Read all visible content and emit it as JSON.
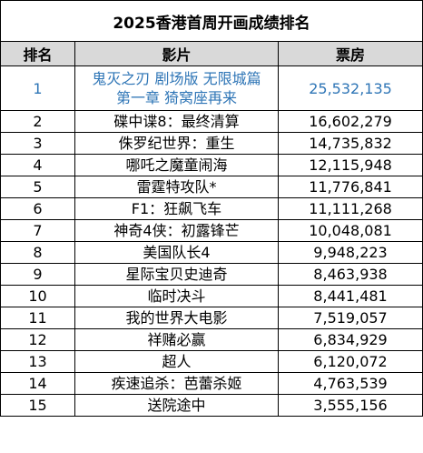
{
  "title": "2025香港首周开画成绩排名",
  "headers": {
    "rank": "排名",
    "film": "影片",
    "box_office": "票房"
  },
  "accent_color": "#2e75b6",
  "rows": [
    {
      "rank": "1",
      "film_line1": "鬼灭之刃 剧场版 无限城篇",
      "film_line2": "第一章 猗窝座再来",
      "box_office": "25,532,135"
    },
    {
      "rank": "2",
      "film": "碟中谍8：最终清算",
      "box_office": "16,602,279"
    },
    {
      "rank": "3",
      "film": "侏罗纪世界：重生",
      "box_office": "14,735,832"
    },
    {
      "rank": "4",
      "film": "哪吒之魔童闹海",
      "box_office": "12,115,948"
    },
    {
      "rank": "5",
      "film": "雷霆特攻队*",
      "box_office": "11,776,841"
    },
    {
      "rank": "6",
      "film": "F1：狂飙飞车",
      "box_office": "11,111,268"
    },
    {
      "rank": "7",
      "film": "神奇4侠：初露锋芒",
      "box_office": "10,048,081"
    },
    {
      "rank": "8",
      "film": "美国队长4",
      "box_office": "9,948,223"
    },
    {
      "rank": "9",
      "film": "星际宝贝史迪奇",
      "box_office": "8,463,938"
    },
    {
      "rank": "10",
      "film": "临时决斗",
      "box_office": "8,441,481"
    },
    {
      "rank": "11",
      "film": "我的世界大电影",
      "box_office": "7,519,057"
    },
    {
      "rank": "12",
      "film": "祥赌必赢",
      "box_office": "6,834,929"
    },
    {
      "rank": "13",
      "film": "超人",
      "box_office": "6,120,072"
    },
    {
      "rank": "14",
      "film": "疾速追杀：芭蕾杀姬",
      "box_office": "4,763,539"
    },
    {
      "rank": "15",
      "film": "送院途中",
      "box_office": "3,555,156"
    }
  ]
}
